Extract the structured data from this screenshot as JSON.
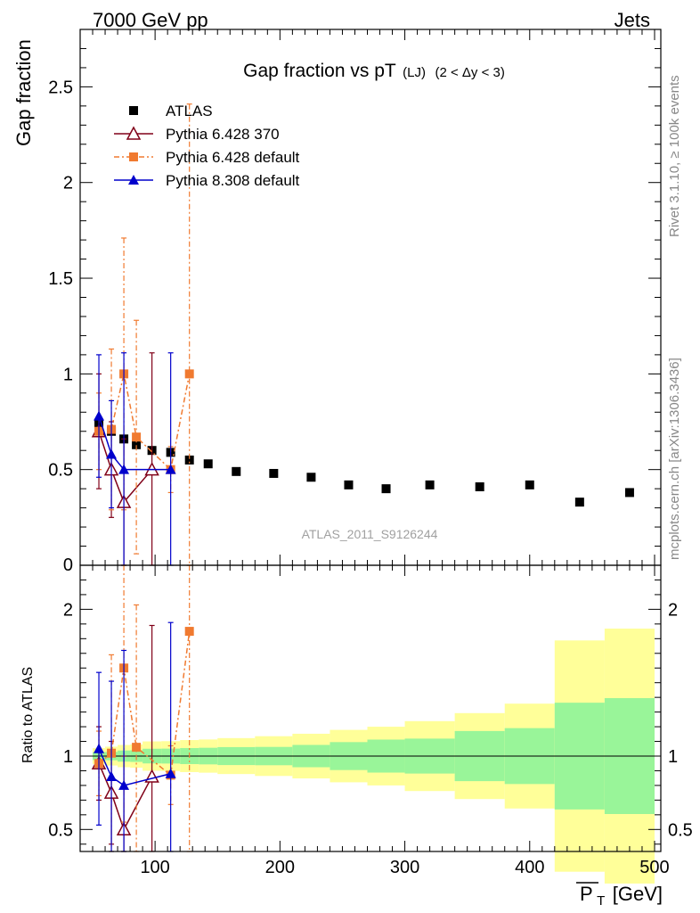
{
  "header": {
    "left": "7000 GeV pp",
    "right": "Jets"
  },
  "side": {
    "rivet": "Rivet 3.1.10, ≥ 100k events",
    "mcplots": "mcplots.cern.ch [arXiv:1306.3436]"
  },
  "chart_data": {
    "type": "scatter",
    "title_main": "Gap fraction vs pT",
    "title_sub": "(LJ)",
    "title_range": "(2 < Δy < 3)",
    "watermark": "ATLAS_2011_S9126244",
    "xlabel": "P̅T [GeV]",
    "xlabel_main": "P",
    "xlabel_sub": "T",
    "xlabel_unit": "[GeV]",
    "ylabel": "Gap fraction",
    "ratio_ylabel": "Ratio to ATLAS",
    "xlim": [
      40,
      505
    ],
    "ylim": [
      0,
      2.8
    ],
    "ratio_ylim": [
      0.35,
      2.3
    ],
    "xticks": [
      100,
      200,
      300,
      400,
      500
    ],
    "yticks": [
      0.5,
      1,
      1.5,
      2,
      2.5
    ],
    "yticks_labels": [
      "0.5",
      "1",
      "1.5",
      "2",
      "2.5"
    ],
    "y_zero_label": "0",
    "ratio_yticks": [
      0.5,
      1,
      2
    ],
    "ratio_yticks_labels": [
      "0.5",
      "1",
      "2"
    ],
    "legend_position": "top-left",
    "data": {
      "name": "ATLAS",
      "color": "#000000",
      "bins": [
        [
          50,
          60
        ],
        [
          60,
          70
        ],
        [
          70,
          80
        ],
        [
          80,
          90
        ],
        [
          90,
          105
        ],
        [
          105,
          120
        ],
        [
          120,
          135
        ],
        [
          135,
          150
        ],
        [
          150,
          180
        ],
        [
          180,
          210
        ],
        [
          210,
          240
        ],
        [
          240,
          270
        ],
        [
          270,
          300
        ],
        [
          300,
          340
        ],
        [
          340,
          380
        ],
        [
          380,
          420
        ],
        [
          420,
          460
        ],
        [
          460,
          500
        ]
      ],
      "x": [
        55,
        65,
        75,
        85,
        97.5,
        112.5,
        127.5,
        142.5,
        165,
        195,
        225,
        255,
        285,
        320,
        360,
        400,
        440,
        480
      ],
      "y": [
        0.74,
        0.7,
        0.66,
        0.63,
        0.6,
        0.59,
        0.55,
        0.53,
        0.49,
        0.48,
        0.46,
        0.42,
        0.4,
        0.42,
        0.41,
        0.42,
        0.33,
        0.38
      ],
      "band_stat": [
        0.02,
        0.02,
        0.025,
        0.025,
        0.03,
        0.03,
        0.03,
        0.03,
        0.03,
        0.03,
        0.035,
        0.04,
        0.045,
        0.05,
        0.07,
        0.08,
        0.12,
        0.15
      ],
      "band_total": [
        0.04,
        0.045,
        0.05,
        0.05,
        0.06,
        0.06,
        0.06,
        0.06,
        0.06,
        0.065,
        0.07,
        0.075,
        0.08,
        0.1,
        0.12,
        0.15,
        0.26,
        0.33
      ]
    },
    "series": [
      {
        "name": "Pythia 6.428 370",
        "color": "#800018",
        "marker": "open-triangle",
        "dash": "",
        "x": [
          55,
          65,
          75,
          97.5
        ],
        "y": [
          0.7,
          0.5,
          0.33,
          0.5
        ],
        "err": [
          0.3,
          0.25,
          0.33,
          0.61
        ],
        "ratio": [
          0.95,
          0.75,
          0.5,
          0.86
        ],
        "ratio_err": [
          0.25,
          0.35,
          0.5,
          1.03
        ]
      },
      {
        "name": "Pythia 6.428 default",
        "color": "#f07a30",
        "marker": "square",
        "dash": "6,3,2,3",
        "x": [
          55,
          65,
          75,
          85,
          112.5,
          127.5
        ],
        "y": [
          0.7,
          0.71,
          1.0,
          0.67,
          0.5,
          1.0
        ],
        "err": [
          0.2,
          0.42,
          0.71,
          0.61,
          0.12,
          1.41
        ],
        "ratio": [
          0.95,
          1.02,
          1.6,
          1.06,
          0.87,
          1.85
        ],
        "ratio_err": [
          0.22,
          0.67,
          1.05,
          0.97,
          0.2,
          2.2
        ]
      },
      {
        "name": "Pythia 8.308 default",
        "color": "#0000cc",
        "marker": "triangle",
        "dash": "",
        "x": [
          55,
          65,
          75,
          112.5
        ],
        "y": [
          0.78,
          0.58,
          0.5,
          0.5
        ],
        "err": [
          0.32,
          0.28,
          0.61,
          0.61
        ],
        "ratio": [
          1.05,
          0.86,
          0.8,
          0.88
        ],
        "ratio_err": [
          0.52,
          0.65,
          0.92,
          1.03
        ]
      }
    ]
  }
}
